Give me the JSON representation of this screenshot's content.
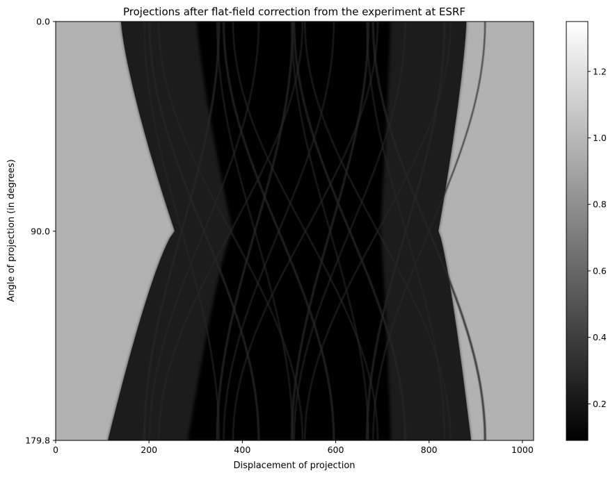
{
  "chart_data": {
    "type": "heatmap",
    "title": "Projections after flat-field correction from the experiment at ESRF",
    "xlabel": "Displacement of projection",
    "ylabel": "Angle of projection (in degrees)",
    "colormap": "gray",
    "x": {
      "range": [
        0,
        1024
      ],
      "ticks": [
        0,
        200,
        400,
        600,
        800,
        1000
      ],
      "tick_labels": [
        "0",
        "200",
        "400",
        "600",
        "800",
        "1000"
      ]
    },
    "y": {
      "range": [
        0.0,
        179.8
      ],
      "inverted": true,
      "ticks": [
        0.0,
        90.0,
        179.8
      ],
      "tick_labels": [
        "0.0",
        "90.0",
        "179.8"
      ]
    },
    "colorbar": {
      "range": [
        0.09,
        1.35
      ],
      "ticks": [
        0.2,
        0.4,
        0.6,
        0.8,
        1.0,
        1.2
      ],
      "tick_labels": [
        "0.2",
        "0.4",
        "0.6",
        "0.8",
        "1.0",
        "1.2"
      ]
    },
    "sinogram": {
      "background_value": 1.0,
      "interior_value": 0.15,
      "support_left_at_0deg": 140,
      "support_right_at_0deg": 880,
      "support_left_at_90deg": 255,
      "support_right_at_90deg": 820,
      "support_left_at_179_8deg": 112,
      "support_right_at_179_8deg": 890,
      "crossing_points_at_90deg": [
        270,
        318,
        375,
        427,
        478,
        535,
        588,
        630,
        690,
        750,
        800
      ]
    }
  }
}
